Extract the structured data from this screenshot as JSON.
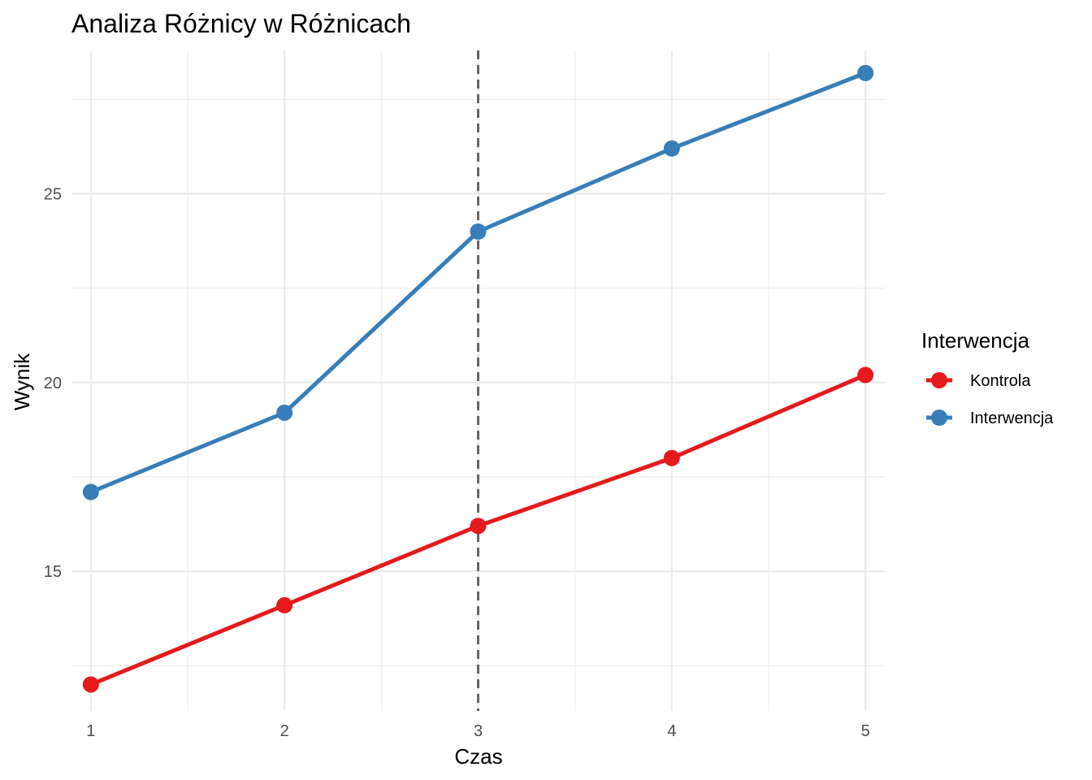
{
  "chart_data": {
    "type": "line",
    "title": "Analiza Różnicy w Różnicach",
    "xlabel": "Czas",
    "ylabel": "Wynik",
    "x": [
      1,
      2,
      3,
      4,
      5
    ],
    "x_ticks": [
      1,
      2,
      3,
      4,
      5
    ],
    "y_ticks": [
      15,
      20,
      25
    ],
    "xlim": [
      0.9,
      5.1
    ],
    "ylim": [
      11.3,
      28.8
    ],
    "grid": true,
    "reference_line": {
      "x": 3,
      "style": "dashed",
      "color": "#666666"
    },
    "legend": {
      "title": "Interwencja",
      "position": "right"
    },
    "series": [
      {
        "name": "Kontrola",
        "color": "#E41A1C",
        "values": [
          12.0,
          14.1,
          16.2,
          18.0,
          20.2
        ]
      },
      {
        "name": "Interwencja",
        "color": "#377EB8",
        "values": [
          17.1,
          19.2,
          24.0,
          26.2,
          28.2
        ]
      }
    ]
  }
}
